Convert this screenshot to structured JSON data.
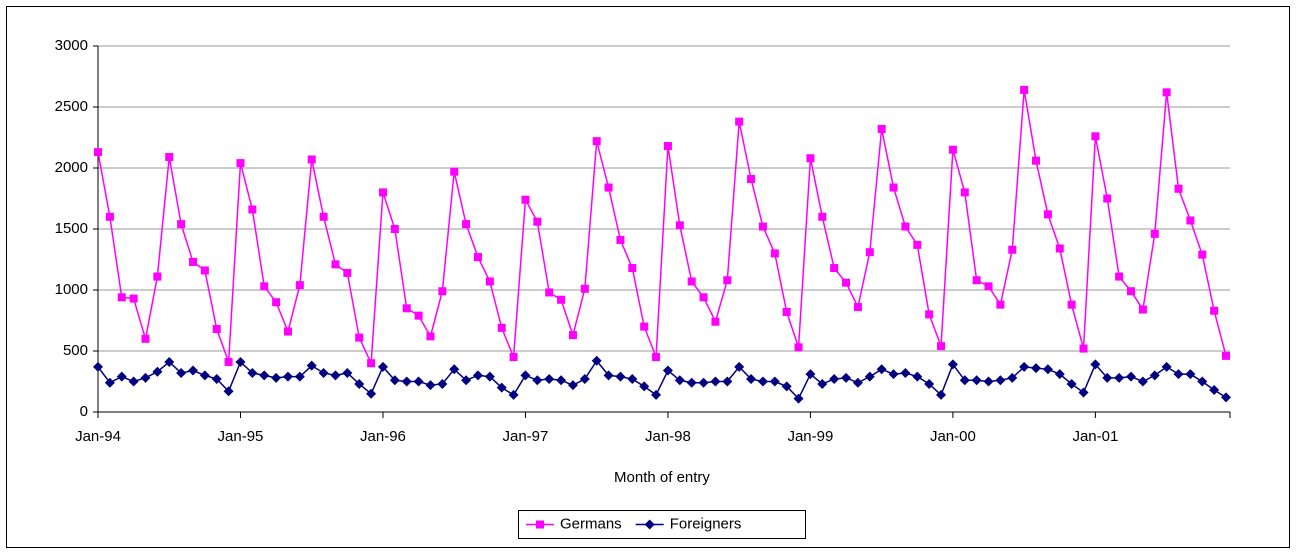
{
  "chart_data": {
    "type": "line",
    "x_label": "Month of entry",
    "categories": [
      "Jan-94",
      null,
      null,
      null,
      null,
      null,
      null,
      null,
      null,
      null,
      null,
      null,
      "Jan-95",
      null,
      null,
      null,
      null,
      null,
      null,
      null,
      null,
      null,
      null,
      null,
      "Jan-96",
      null,
      null,
      null,
      null,
      null,
      null,
      null,
      null,
      null,
      null,
      null,
      "Jan-97",
      null,
      null,
      null,
      null,
      null,
      null,
      null,
      null,
      null,
      null,
      null,
      "Jan-98",
      null,
      null,
      null,
      null,
      null,
      null,
      null,
      null,
      null,
      null,
      null,
      "Jan-99",
      null,
      null,
      null,
      null,
      null,
      null,
      null,
      null,
      null,
      null,
      null,
      "Jan-00",
      null,
      null,
      null,
      null,
      null,
      null,
      null,
      null,
      null,
      null,
      null,
      "Jan-01",
      null,
      null,
      null,
      null,
      null,
      null,
      null,
      null,
      null,
      null,
      null
    ],
    "series": [
      {
        "name": "Germans",
        "color": "#ff00ff",
        "marker": "square",
        "values": [
          2130,
          1600,
          940,
          930,
          600,
          1110,
          2090,
          1540,
          1230,
          1160,
          680,
          410,
          2040,
          1660,
          1030,
          900,
          660,
          1040,
          2070,
          1600,
          1210,
          1140,
          610,
          400,
          1800,
          1500,
          850,
          790,
          620,
          990,
          1970,
          1540,
          1270,
          1070,
          690,
          450,
          1740,
          1560,
          980,
          920,
          630,
          1010,
          2220,
          1840,
          1410,
          1180,
          700,
          450,
          2180,
          1530,
          1070,
          940,
          740,
          1080,
          2380,
          1910,
          1520,
          1300,
          820,
          530,
          2080,
          1600,
          1180,
          1060,
          860,
          1310,
          2320,
          1840,
          1520,
          1370,
          800,
          540,
          2150,
          1800,
          1080,
          1030,
          880,
          1330,
          2640,
          2060,
          1620,
          1340,
          880,
          520,
          2260,
          1750,
          1110,
          990,
          840,
          1460,
          2620,
          1830,
          1570,
          1290,
          830,
          460
        ]
      },
      {
        "name": "Foreigners",
        "color": "#000080",
        "marker": "diamond",
        "values": [
          370,
          240,
          290,
          250,
          280,
          330,
          410,
          320,
          340,
          300,
          270,
          170,
          410,
          320,
          300,
          280,
          290,
          290,
          380,
          320,
          300,
          320,
          230,
          150,
          370,
          260,
          250,
          250,
          220,
          230,
          350,
          260,
          300,
          290,
          200,
          140,
          300,
          260,
          270,
          260,
          220,
          270,
          420,
          300,
          290,
          270,
          210,
          140,
          340,
          260,
          240,
          240,
          250,
          250,
          370,
          270,
          250,
          250,
          210,
          110,
          310,
          230,
          270,
          280,
          240,
          290,
          350,
          310,
          320,
          290,
          230,
          140,
          390,
          260,
          260,
          250,
          260,
          280,
          370,
          360,
          350,
          310,
          230,
          160,
          390,
          280,
          280,
          290,
          250,
          300,
          370,
          310,
          310,
          250,
          180,
          120
        ]
      }
    ],
    "ylim": [
      0,
      3000
    ],
    "yticks": [
      0,
      500,
      1000,
      1500,
      2000,
      2500,
      3000
    ],
    "grid": true,
    "legend": "bottom"
  }
}
